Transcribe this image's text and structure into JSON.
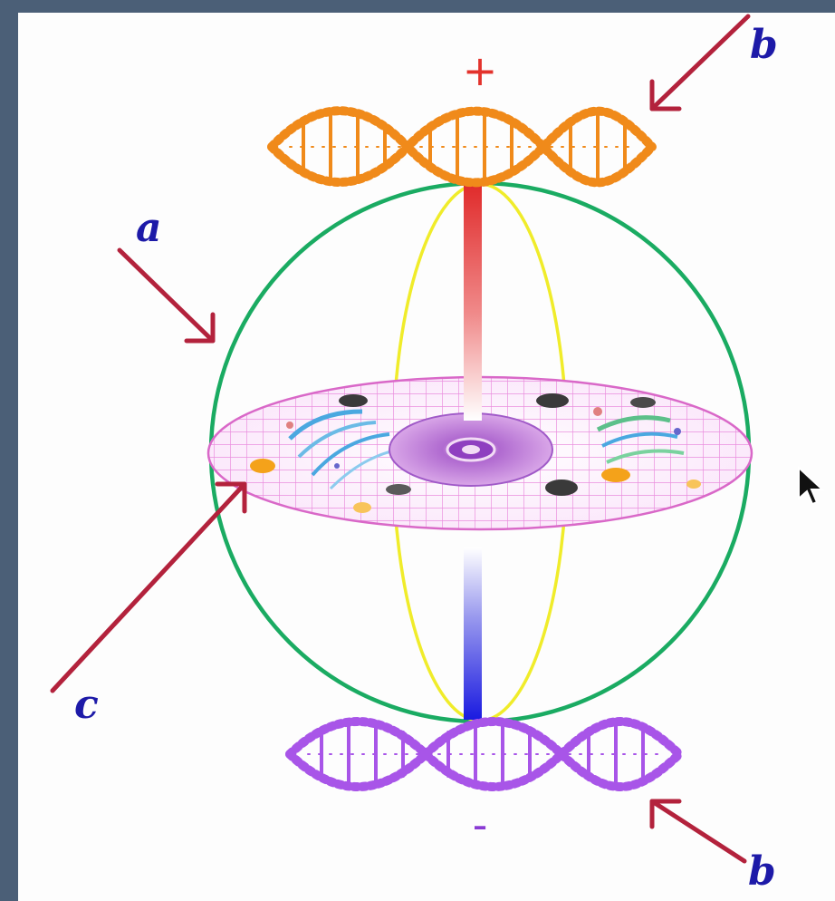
{
  "labels": {
    "a": "a",
    "b_top": "b",
    "b_bottom": "b",
    "c": "c"
  },
  "poles": {
    "top": "+",
    "bottom": "-"
  },
  "colors": {
    "sphere_outline": "#1aab62",
    "meridian": "#f0ec2a",
    "axis_positive": "#e02a2a",
    "axis_negative": "#1a1ae0",
    "arrow": "#b3223c",
    "disc_grid": "#e77ed9",
    "dna_top": "#f08a1a",
    "dna_bottom": "#a855e8",
    "label_text": "#1d1aa8",
    "frame": "#4b5f77"
  },
  "icons": {
    "cursor": "mouse-pointer-icon"
  }
}
